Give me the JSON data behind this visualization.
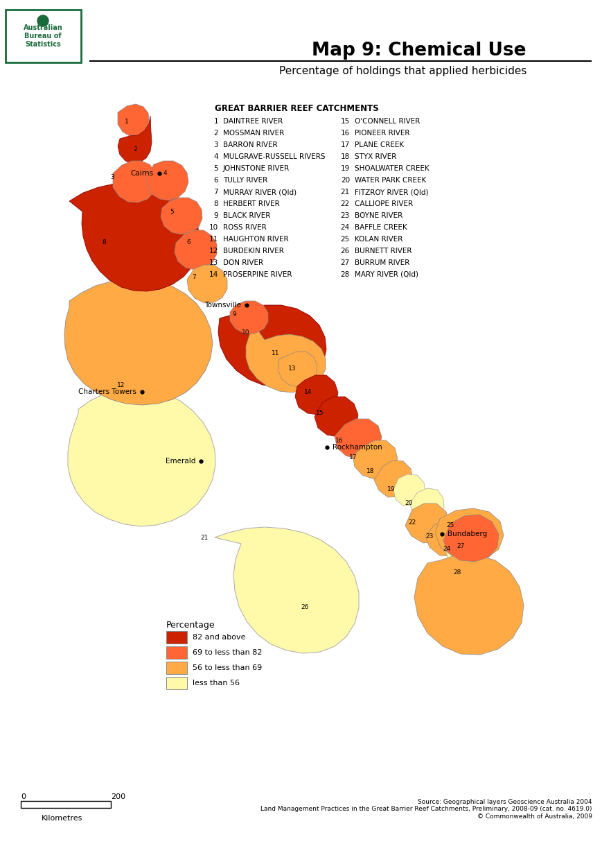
{
  "title": "Map 9: Chemical Use",
  "subtitle": "Percentage of holdings that applied herbicides",
  "catchment_header": "GREAT BARRIER REEF CATCHMENTS",
  "catchments_col1": [
    [
      "1",
      "DAINTREE RIVER"
    ],
    [
      "2",
      "MOSSMAN RIVER"
    ],
    [
      "3",
      "BARRON RIVER"
    ],
    [
      "4",
      "MULGRAVE-RUSSELL RIVERS"
    ],
    [
      "5",
      "JOHNSTONE RIVER"
    ],
    [
      "6",
      "TULLY RIVER"
    ],
    [
      "7",
      "MURRAY RIVER (Qld)"
    ],
    [
      "8",
      "HERBERT RIVER"
    ],
    [
      "9",
      "BLACK RIVER"
    ],
    [
      "10",
      "ROSS RIVER"
    ],
    [
      "11",
      "HAUGHTON RIVER"
    ],
    [
      "12",
      "BURDEKIN RIVER"
    ],
    [
      "13",
      "DON RIVER"
    ],
    [
      "14",
      "PROSERPINE RIVER"
    ]
  ],
  "catchments_col2": [
    [
      "15",
      "O'CONNELL RIVER"
    ],
    [
      "16",
      "PIONEER RIVER"
    ],
    [
      "17",
      "PLANE CREEK"
    ],
    [
      "18",
      "STYX RIVER"
    ],
    [
      "20",
      "WATER PARK CREEK"
    ],
    [
      "21",
      "FITZROY RIVER (Qld)"
    ],
    [
      "22",
      "CALLIOPE RIVER"
    ],
    [
      "23",
      "BOYNE RIVER"
    ],
    [
      "24",
      "BAFFLE CREEK"
    ],
    [
      "25",
      "KOLAN RIVER"
    ],
    [
      "26",
      "BURNETT RIVER"
    ],
    [
      "27",
      "BURRUM RIVER"
    ],
    [
      "28",
      "MARY RIVER (Qld)"
    ]
  ],
  "catchments_col2_full": [
    [
      "15",
      "O'CONNELL RIVER"
    ],
    [
      "16",
      "PIONEER RIVER"
    ],
    [
      "17",
      "PLANE CREEK"
    ],
    [
      "18",
      "STYX RIVER"
    ],
    [
      "19",
      "SHOALWATER CREEK"
    ],
    [
      "20",
      "WATER PARK CREEK"
    ],
    [
      "21",
      "FITZROY RIVER (Qld)"
    ],
    [
      "22",
      "CALLIOPE RIVER"
    ],
    [
      "23",
      "BOYNE RIVER"
    ],
    [
      "24",
      "BAFFLE CREEK"
    ],
    [
      "25",
      "KOLAN RIVER"
    ],
    [
      "26",
      "BURNETT RIVER"
    ],
    [
      "27",
      "BURRUM RIVER"
    ],
    [
      "28",
      "MARY RIVER (Qld)"
    ]
  ],
  "legend_title": "Percentage",
  "legend_items": [
    {
      "label": "82 and above",
      "color": "#CC2200"
    },
    {
      "label": "69 to less than 82",
      "color": "#FF6633"
    },
    {
      "label": "56 to less than 69",
      "color": "#FFAA44"
    },
    {
      "label": "less than 56",
      "color": "#FFFAAA"
    }
  ],
  "colors": {
    "red": "#CC2200",
    "orange": "#FF6633",
    "dark_orange": "#FFAA44",
    "light_yellow": "#FFFAAA",
    "burdekin_orange": "#FFAA44",
    "background": "#FFFFFF",
    "green": "#1A6B3C",
    "border": "#999999"
  },
  "source_text": "Source: Geographical layers Geoscience Australia 2004\nLand Management Practices in the Great Barrier Reef Catchments, Preliminary, 2008-09 (cat. no. 4619.0)\n© Commonwealth of Australia, 2009"
}
